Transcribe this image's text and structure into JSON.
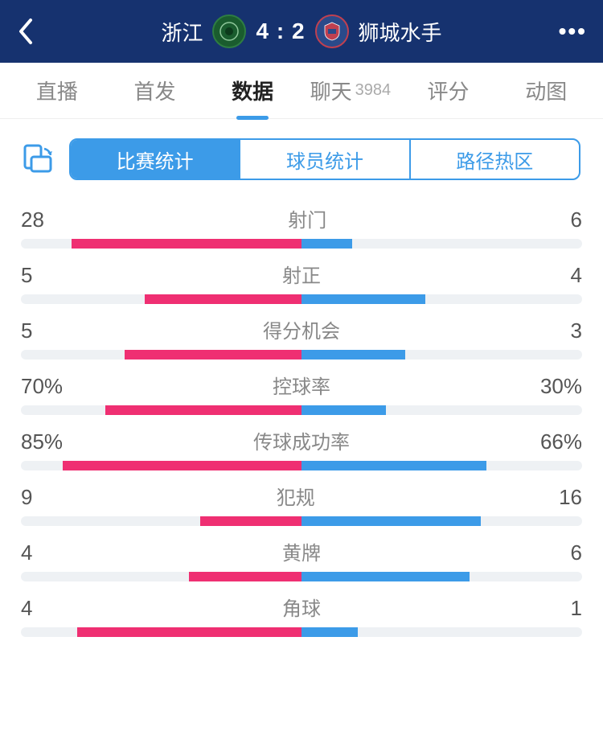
{
  "colors": {
    "header_bg": "#16326f",
    "accent": "#3c9be8",
    "tab_underline": "#3c9be8",
    "bar_track": "#eef1f4",
    "bar_home": "#ef2f72",
    "bar_away": "#3c9be8",
    "text_muted": "#888888",
    "text_value": "#555555"
  },
  "header": {
    "home_team": "浙江",
    "away_team": "狮城水手",
    "score": "4 : 2",
    "home_logo_bg": "#1a5c2e",
    "away_logo_bg": "#2a4a8a"
  },
  "tabs": [
    {
      "key": "live",
      "label": "直播",
      "active": false
    },
    {
      "key": "lineup",
      "label": "首发",
      "active": false
    },
    {
      "key": "data",
      "label": "数据",
      "active": true
    },
    {
      "key": "chat",
      "label": "聊天",
      "count": "3984",
      "active": false
    },
    {
      "key": "rating",
      "label": "评分",
      "active": false
    },
    {
      "key": "gif",
      "label": "动图",
      "active": false
    }
  ],
  "subtabs": [
    {
      "key": "match",
      "label": "比赛统计",
      "active": true
    },
    {
      "key": "player",
      "label": "球员统计",
      "active": false
    },
    {
      "key": "heatmap",
      "label": "路径热区",
      "active": false
    }
  ],
  "stats": [
    {
      "name": "射门",
      "home": "28",
      "away": "6",
      "home_pct": 82,
      "away_pct": 18
    },
    {
      "name": "射正",
      "home": "5",
      "away": "4",
      "home_pct": 56,
      "away_pct": 44
    },
    {
      "name": "得分机会",
      "home": "5",
      "away": "3",
      "home_pct": 63,
      "away_pct": 37
    },
    {
      "name": "控球率",
      "home": "70%",
      "away": "30%",
      "home_pct": 70,
      "away_pct": 30
    },
    {
      "name": "传球成功率",
      "home": "85%",
      "away": "66%",
      "home_pct": 85,
      "away_pct": 66
    },
    {
      "name": "犯规",
      "home": "9",
      "away": "16",
      "home_pct": 36,
      "away_pct": 64
    },
    {
      "name": "黄牌",
      "home": "4",
      "away": "6",
      "home_pct": 40,
      "away_pct": 60
    },
    {
      "name": "角球",
      "home": "4",
      "away": "1",
      "home_pct": 80,
      "away_pct": 20
    }
  ]
}
